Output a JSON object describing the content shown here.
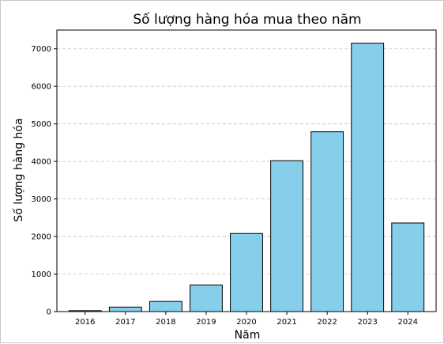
{
  "chart_data": {
    "type": "bar",
    "title": "Số lượng hàng hóa mua theo năm",
    "xlabel": "Năm",
    "ylabel": "Số lượng hàng hóa",
    "categories": [
      "2016",
      "2017",
      "2018",
      "2019",
      "2020",
      "2021",
      "2022",
      "2023",
      "2024"
    ],
    "values": [
      25,
      120,
      270,
      710,
      2080,
      4020,
      4790,
      7150,
      2360
    ],
    "ylim": [
      0,
      7500
    ],
    "yticks": [
      0,
      1000,
      2000,
      3000,
      4000,
      5000,
      6000,
      7000
    ],
    "grid": "horizontal dashed",
    "bar_color": "#87CEEB",
    "edge_color": "#000000"
  }
}
